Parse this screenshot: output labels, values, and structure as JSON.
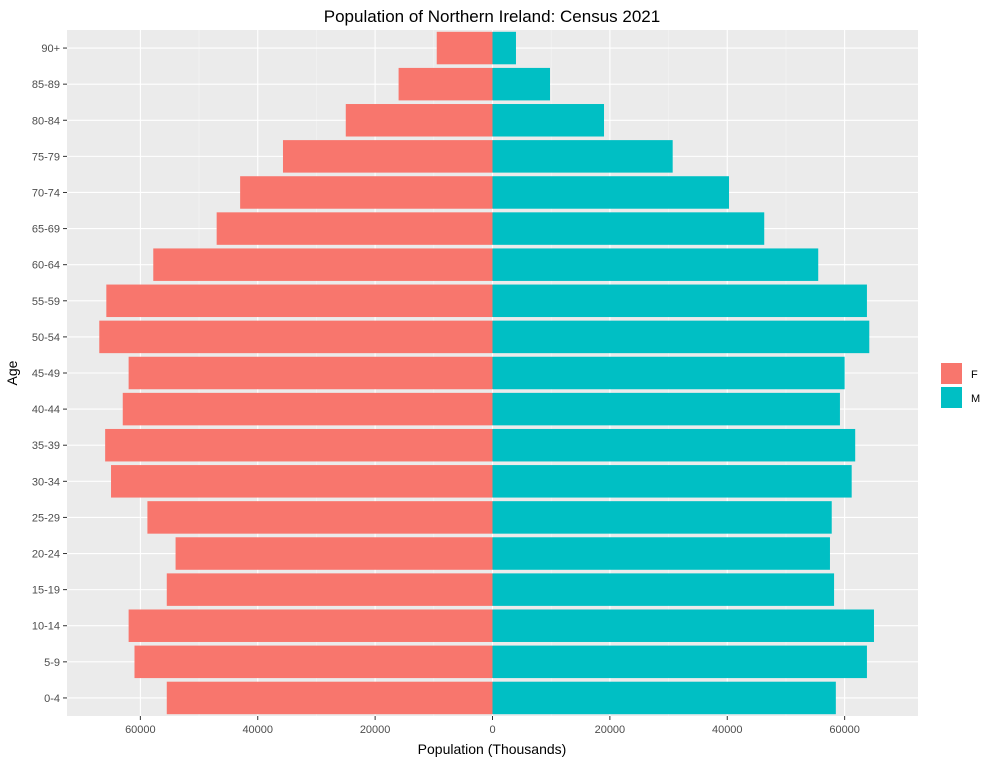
{
  "chart_data": {
    "type": "bar",
    "orientation": "horizontal",
    "title": "Population of Northern Ireland: Census 2021",
    "xlabel": "Population (Thousands)",
    "ylabel": "Age",
    "categories": [
      "0-4",
      "5-9",
      "10-14",
      "15-19",
      "20-24",
      "25-29",
      "30-34",
      "35-39",
      "40-44",
      "45-49",
      "50-54",
      "55-59",
      "60-64",
      "65-69",
      "70-74",
      "75-79",
      "80-84",
      "85-89",
      "90+"
    ],
    "series": [
      {
        "name": "F",
        "color": "#F8766D",
        "values": [
          55500,
          61000,
          62000,
          55500,
          54000,
          58800,
          65000,
          66000,
          63000,
          62000,
          67000,
          65800,
          57800,
          47000,
          43000,
          35700,
          25000,
          16000,
          9500
        ]
      },
      {
        "name": "M",
        "color": "#00BFC4",
        "values": [
          58500,
          63800,
          65000,
          58200,
          57500,
          57800,
          61200,
          61800,
          59200,
          60000,
          64200,
          63800,
          55500,
          46300,
          40300,
          30700,
          19000,
          9800,
          4000
        ]
      }
    ],
    "xlim": [
      -72500,
      72500
    ],
    "xticks": [
      -60000,
      -40000,
      -20000,
      0,
      20000,
      40000,
      60000
    ],
    "xtick_labels": [
      "60000",
      "40000",
      "20000",
      "0",
      "20000",
      "40000",
      "60000"
    ],
    "grid": true,
    "legend_position": "right"
  }
}
